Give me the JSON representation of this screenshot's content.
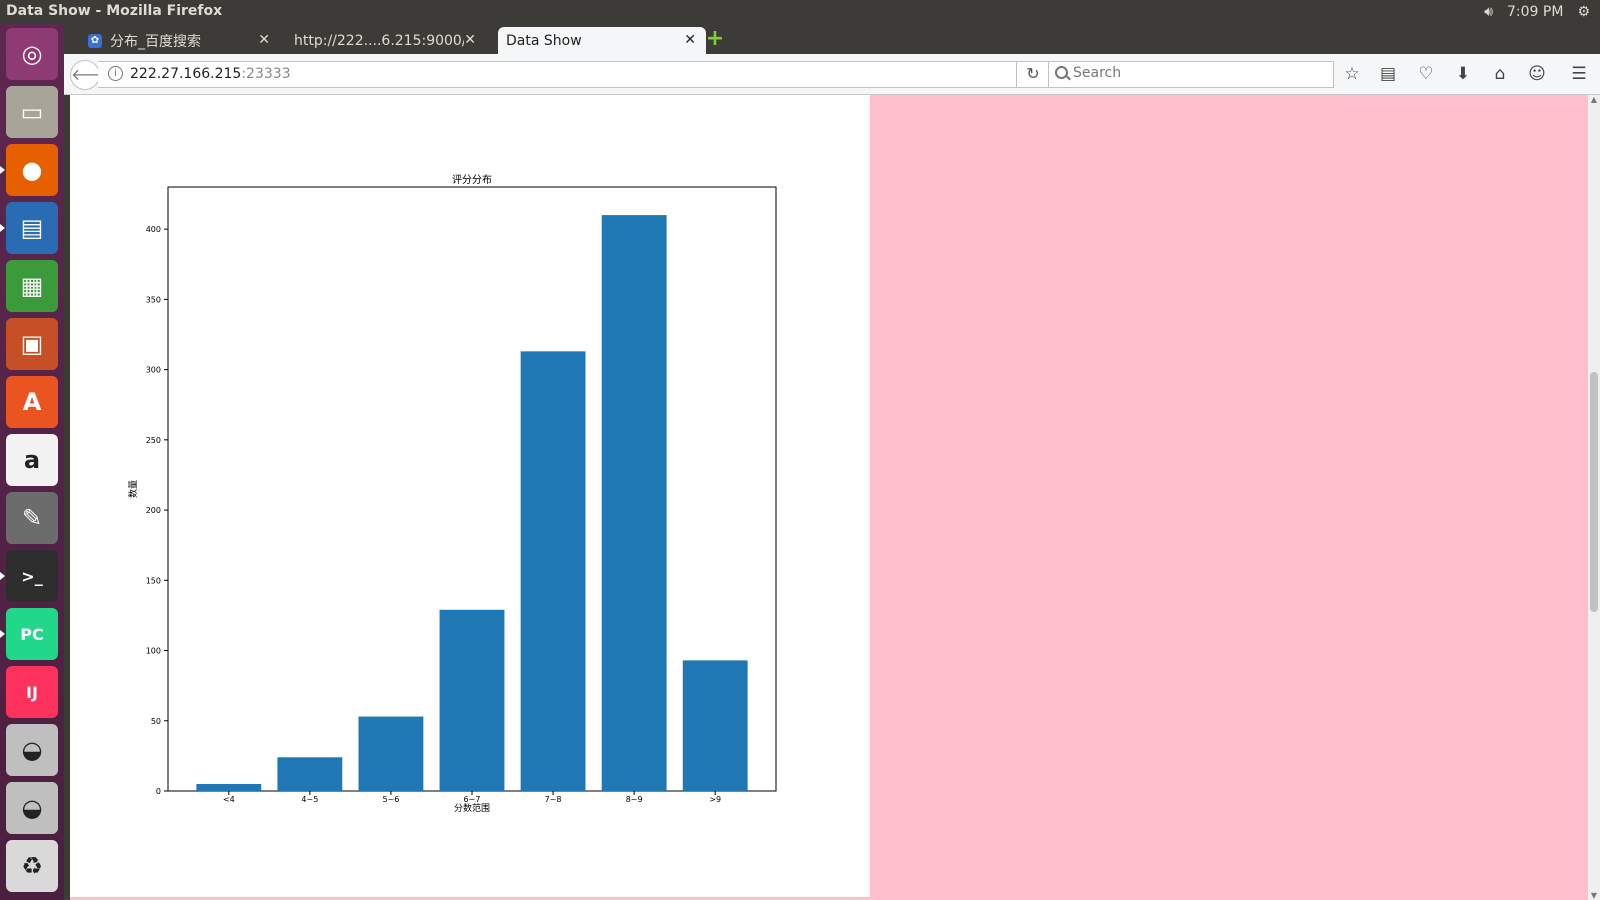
{
  "window": {
    "title": "Data Show - Mozilla Firefox"
  },
  "panel": {
    "clock": "7:09 PM",
    "volume_icon": "volume-icon",
    "settings_icon": "gear-icon"
  },
  "launcher": [
    {
      "name": "ubuntu-dash-icon",
      "color": "#8e3a73"
    },
    {
      "name": "files-icon",
      "color": "#a8a49a"
    },
    {
      "name": "firefox-icon",
      "color": "#e66000"
    },
    {
      "name": "writer-icon",
      "color": "#2a6cb3"
    },
    {
      "name": "calc-icon",
      "color": "#3b9b3b"
    },
    {
      "name": "impress-icon",
      "color": "#c64f26"
    },
    {
      "name": "software-center-icon",
      "color": "#e95420"
    },
    {
      "name": "amazon-icon",
      "color": "#f2f2f2"
    },
    {
      "name": "system-settings-icon",
      "color": "#6c6c6c"
    },
    {
      "name": "terminal-icon",
      "color": "#2d2d2d"
    },
    {
      "name": "pycharm-icon",
      "color": "#21d789"
    },
    {
      "name": "intellij-icon",
      "color": "#fe315d"
    },
    {
      "name": "disk-1-icon",
      "color": "#bfbfbf"
    },
    {
      "name": "disk-2-icon",
      "color": "#bfbfbf"
    },
    {
      "name": "trash-icon",
      "color": "#d9d9d9"
    }
  ],
  "tabs": [
    {
      "label": "分布_百度搜索",
      "active": false
    },
    {
      "label": "http://222....6.215:9000/",
      "active": false
    },
    {
      "label": "Data Show",
      "active": true
    }
  ],
  "navbar": {
    "url_host": "222.27.166.215",
    "url_port": ":23333",
    "search_placeholder": "Search"
  },
  "chart_data": {
    "type": "bar",
    "title": "评分分布",
    "xlabel": "分数范围",
    "ylabel": "数量",
    "categories": [
      "<4",
      "4~5",
      "5~6",
      "6~7",
      "7~8",
      "8~9",
      ">9"
    ],
    "values": [
      5,
      24,
      53,
      129,
      313,
      410,
      93
    ],
    "ylim": [
      0,
      430
    ],
    "yticks": [
      0,
      50,
      100,
      150,
      200,
      250,
      300,
      350,
      400
    ],
    "bar_color": "#1f77b4",
    "grid": false
  },
  "colors": {
    "page_background": "#ffc0cb",
    "panel": "#ffffff"
  }
}
